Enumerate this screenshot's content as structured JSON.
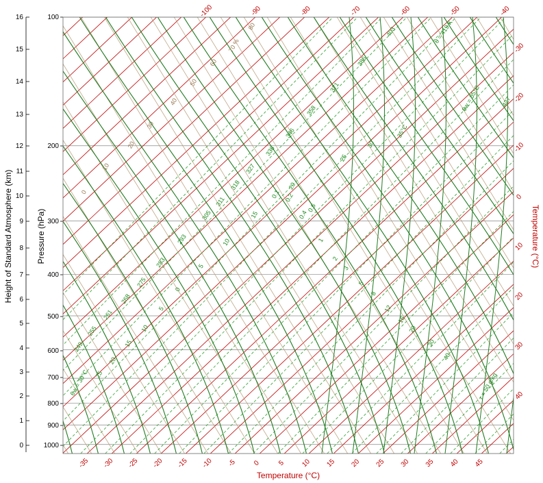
{
  "axes": {
    "height_title": "Height of Standard Atmosphere (km)",
    "pressure_title": "Pressure (hPa)",
    "temperature_title": "Temperature (°C)",
    "right_temperature_title": "Temperature (°C)",
    "height_ticks_km": [
      "16",
      "15",
      "14",
      "13",
      "12",
      "11",
      "10",
      "9",
      "8",
      "7",
      "6",
      "5",
      "4",
      "3",
      "2",
      "1",
      "0"
    ],
    "pressure_ticks_hpa": [
      "100",
      "200",
      "300",
      "400",
      "500",
      "600",
      "700",
      "800",
      "900",
      "1000"
    ],
    "bottom_temperature_ticks": [
      "-35",
      "-30",
      "-25",
      "-20",
      "-15",
      "-10",
      "-5",
      "0",
      "5",
      "10",
      "15",
      "20",
      "25",
      "30",
      "35",
      "40",
      "45"
    ],
    "top_temperature_ticks": [
      "-100",
      "-90",
      "-80",
      "-70",
      "-60",
      "-50",
      "-40"
    ],
    "right_temperature_ticks": [
      "-30",
      "-20",
      "-10",
      "0",
      "10",
      "20",
      "30",
      "40"
    ]
  },
  "line_labels": {
    "dry_adiabats": [
      "249",
      "255",
      "261",
      "268",
      "275",
      "283",
      "293",
      "305",
      "311",
      "318",
      "327",
      "336",
      "346",
      "358",
      "371",
      "386",
      "403",
      "θ = 419 K"
    ],
    "moist_adiabats": [
      "θw = 30°C",
      "25",
      "20",
      "15",
      "10",
      "5",
      "0",
      "5",
      "10",
      "15",
      "20",
      "25",
      "30",
      "35°C"
    ],
    "mixing_ratio": [
      "0.1",
      "0.2",
      "0.4",
      "0.6",
      "1",
      "2",
      "3",
      "5",
      "8",
      "12",
      "16",
      "20",
      "30",
      "40",
      "r = 50 g/kg"
    ],
    "isotherm_tan": [
      "0",
      "10",
      "20",
      "30",
      "40",
      "50",
      "60",
      "70 %",
      "80"
    ],
    "top_right_label": "θw = 35°C",
    "right_edge_label": "427"
  },
  "colors": {
    "isotherm": "#c00000",
    "isobar": "#888888",
    "dry_adiabat": "#b89a78",
    "moist_adiabat": "#1f7a1f",
    "mixing_ratio": "#2ca02c"
  }
}
